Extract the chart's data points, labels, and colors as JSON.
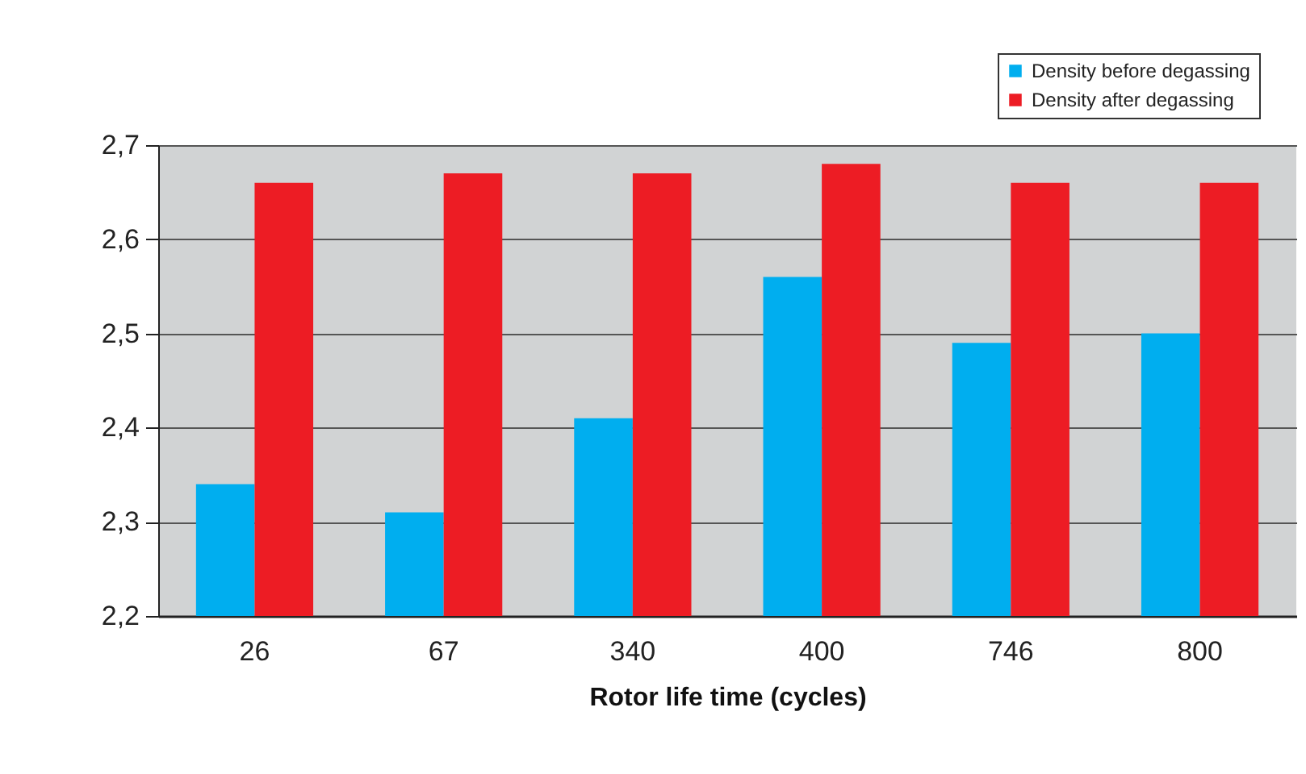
{
  "chart_data": {
    "type": "bar",
    "xlabel": "Rotor life time (cycles)",
    "categories": [
      "26",
      "67",
      "340",
      "400",
      "746",
      "800"
    ],
    "series": [
      {
        "name": "Density before degassing",
        "color": "#00aeef",
        "values": [
          2.34,
          2.31,
          2.41,
          2.56,
          2.49,
          2.5
        ]
      },
      {
        "name": "Density after degassing",
        "color": "#ed1c24",
        "values": [
          2.66,
          2.67,
          2.67,
          2.68,
          2.66,
          2.66
        ]
      }
    ],
    "ylim": [
      2.2,
      2.7
    ],
    "yticks": [
      {
        "value": 2.2,
        "label": "2,2"
      },
      {
        "value": 2.3,
        "label": "2,3"
      },
      {
        "value": 2.4,
        "label": "2,4"
      },
      {
        "value": 2.5,
        "label": "2,5"
      },
      {
        "value": 2.6,
        "label": "2,6"
      },
      {
        "value": 2.7,
        "label": "2,7"
      }
    ],
    "grid": "y",
    "legend": "top right"
  }
}
